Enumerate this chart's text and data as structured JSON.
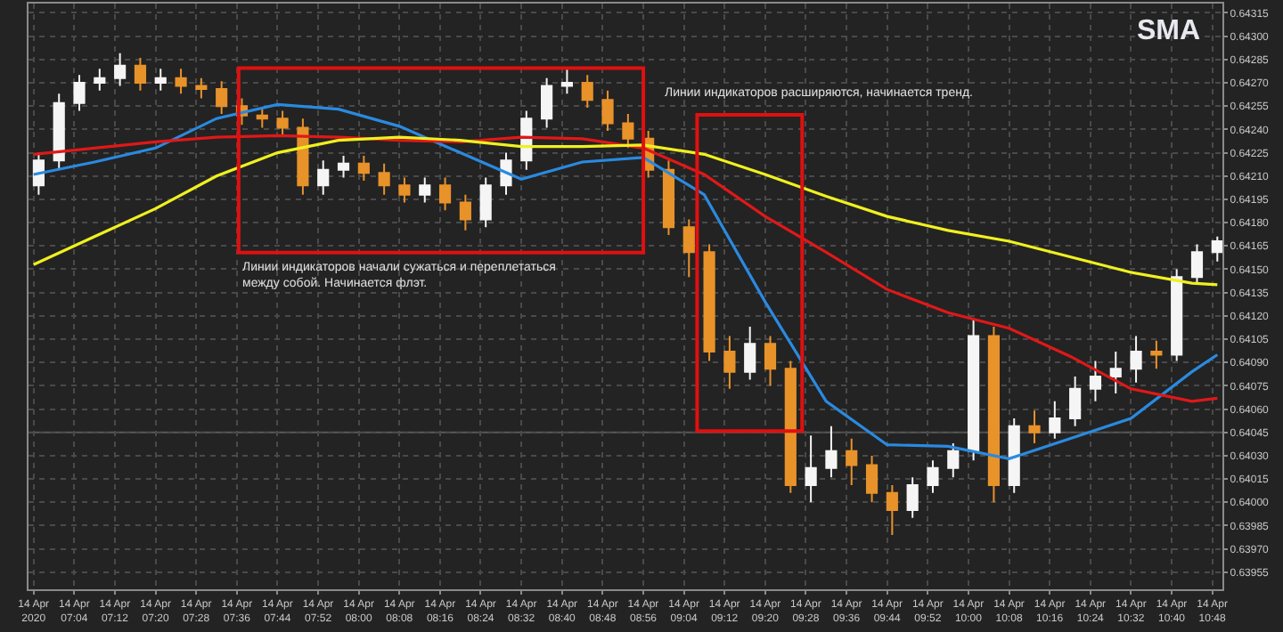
{
  "chart_data": {
    "type": "candlestick",
    "title": "SMA",
    "x": [
      "2020-04-14T06:57",
      "2020-04-14T07:01",
      "2020-04-14T07:05",
      "2020-04-14T07:09",
      "2020-04-14T07:13",
      "2020-04-14T07:17",
      "2020-04-14T07:21",
      "2020-04-14T07:25",
      "2020-04-14T07:29",
      "2020-04-14T07:33",
      "2020-04-14T07:37",
      "2020-04-14T07:41",
      "2020-04-14T07:45",
      "2020-04-14T07:49",
      "2020-04-14T07:53",
      "2020-04-14T07:57",
      "2020-04-14T08:01",
      "2020-04-14T08:05",
      "2020-04-14T08:09",
      "2020-04-14T08:13",
      "2020-04-14T08:17",
      "2020-04-14T08:21",
      "2020-04-14T08:25",
      "2020-04-14T08:29",
      "2020-04-14T08:33",
      "2020-04-14T08:37",
      "2020-04-14T08:41",
      "2020-04-14T08:45",
      "2020-04-14T08:49",
      "2020-04-14T08:53",
      "2020-04-14T08:57",
      "2020-04-14T09:01",
      "2020-04-14T09:05",
      "2020-04-14T09:09",
      "2020-04-14T09:13",
      "2020-04-14T09:17",
      "2020-04-14T09:21",
      "2020-04-14T09:25",
      "2020-04-14T09:29",
      "2020-04-14T09:33",
      "2020-04-14T09:37",
      "2020-04-14T09:41",
      "2020-04-14T09:45",
      "2020-04-14T09:49",
      "2020-04-14T09:53",
      "2020-04-14T09:57",
      "2020-04-14T10:01",
      "2020-04-14T10:05",
      "2020-04-14T10:09",
      "2020-04-14T10:13",
      "2020-04-14T10:17",
      "2020-04-14T10:21",
      "2020-04-14T10:25",
      "2020-04-14T10:29",
      "2020-04-14T10:33",
      "2020-04-14T10:37",
      "2020-04-14T10:41",
      "2020-04-14T10:45",
      "2020-04-14T10:49"
    ],
    "ohlc": [
      [
        0.64204,
        0.64225,
        0.64198,
        0.6422
      ],
      [
        0.6422,
        0.64263,
        0.64214,
        0.64257
      ],
      [
        0.64257,
        0.64275,
        0.64252,
        0.6427
      ],
      [
        0.6427,
        0.64279,
        0.64265,
        0.64273
      ],
      [
        0.64273,
        0.64289,
        0.64268,
        0.64281
      ],
      [
        0.64281,
        0.64286,
        0.64265,
        0.6427
      ],
      [
        0.6427,
        0.64279,
        0.64265,
        0.64273
      ],
      [
        0.64273,
        0.64279,
        0.64263,
        0.64268
      ],
      [
        0.64268,
        0.64273,
        0.6426,
        0.64266
      ],
      [
        0.64266,
        0.64271,
        0.6425,
        0.64255
      ],
      [
        0.64255,
        0.6426,
        0.64243,
        0.64249
      ],
      [
        0.64249,
        0.64254,
        0.64241,
        0.64247
      ],
      [
        0.64247,
        0.64252,
        0.64236,
        0.64241
      ],
      [
        0.64241,
        0.64247,
        0.64198,
        0.64204
      ],
      [
        0.64204,
        0.6422,
        0.64198,
        0.64214
      ],
      [
        0.64214,
        0.64223,
        0.64209,
        0.64218
      ],
      [
        0.64218,
        0.64223,
        0.64207,
        0.64212
      ],
      [
        0.64212,
        0.64218,
        0.64198,
        0.64204
      ],
      [
        0.64204,
        0.64209,
        0.64193,
        0.64198
      ],
      [
        0.64198,
        0.64209,
        0.64193,
        0.64204
      ],
      [
        0.64204,
        0.64209,
        0.64188,
        0.64193
      ],
      [
        0.64193,
        0.64198,
        0.64175,
        0.64182
      ],
      [
        0.64182,
        0.64209,
        0.64177,
        0.64204
      ],
      [
        0.64204,
        0.64225,
        0.64198,
        0.6422
      ],
      [
        0.6422,
        0.64252,
        0.64214,
        0.64247
      ],
      [
        0.64247,
        0.64273,
        0.64241,
        0.64268
      ],
      [
        0.64268,
        0.64279,
        0.64263,
        0.6427
      ],
      [
        0.6427,
        0.64275,
        0.64254,
        0.64259
      ],
      [
        0.64259,
        0.64265,
        0.64239,
        0.64244
      ],
      [
        0.64244,
        0.6425,
        0.64228,
        0.64234
      ],
      [
        0.64234,
        0.64239,
        0.64209,
        0.64214
      ],
      [
        0.64214,
        0.6422,
        0.64172,
        0.64177
      ],
      [
        0.64177,
        0.64182,
        0.64145,
        0.64161
      ],
      [
        0.64161,
        0.64166,
        0.64091,
        0.64097
      ],
      [
        0.64097,
        0.64107,
        0.64073,
        0.64084
      ],
      [
        0.64084,
        0.64113,
        0.64079,
        0.64102
      ],
      [
        0.64102,
        0.64107,
        0.64075,
        0.64086
      ],
      [
        0.64086,
        0.64091,
        0.64006,
        0.64011
      ],
      [
        0.64011,
        0.64043,
        0.64,
        0.64022
      ],
      [
        0.64022,
        0.64049,
        0.64016,
        0.64033
      ],
      [
        0.64033,
        0.64041,
        0.64011,
        0.64024
      ],
      [
        0.64024,
        0.6403,
        0.64,
        0.64006
      ],
      [
        0.64006,
        0.64011,
        0.63979,
        0.63995
      ],
      [
        0.63995,
        0.64016,
        0.6399,
        0.64011
      ],
      [
        0.64011,
        0.64027,
        0.64006,
        0.64022
      ],
      [
        0.64022,
        0.64038,
        0.64016,
        0.64033
      ],
      [
        0.64033,
        0.64118,
        0.64027,
        0.64107
      ],
      [
        0.64107,
        0.64113,
        0.64,
        0.64011
      ],
      [
        0.64011,
        0.64054,
        0.64006,
        0.64049
      ],
      [
        0.64049,
        0.64059,
        0.64038,
        0.64045
      ],
      [
        0.64045,
        0.64065,
        0.64041,
        0.64054
      ],
      [
        0.64054,
        0.64081,
        0.64049,
        0.64073
      ],
      [
        0.64073,
        0.64091,
        0.64065,
        0.64081
      ],
      [
        0.64081,
        0.64097,
        0.6407,
        0.64086
      ],
      [
        0.64086,
        0.64107,
        0.64077,
        0.64097
      ],
      [
        0.64097,
        0.64104,
        0.64086,
        0.64095
      ],
      [
        0.64095,
        0.6415,
        0.64091,
        0.64145
      ],
      [
        0.64145,
        0.64166,
        0.6414,
        0.64161
      ],
      [
        0.64161,
        0.64171,
        0.64155,
        0.64168
      ]
    ],
    "colors": [
      "#f5f5f5",
      "#f5f5f5",
      "#f5f5f5",
      "#f5f5f5",
      "#f5f5f5",
      "#e8922a",
      "#f5f5f5",
      "#e8922a",
      "#e8922a",
      "#e8922a",
      "#e8922a",
      "#e8922a",
      "#e8922a",
      "#e8922a",
      "#f5f5f5",
      "#f5f5f5",
      "#e8922a",
      "#e8922a",
      "#e8922a",
      "#f5f5f5",
      "#e8922a",
      "#e8922a",
      "#f5f5f5",
      "#f5f5f5",
      "#f5f5f5",
      "#f5f5f5",
      "#f5f5f5",
      "#e8922a",
      "#e8922a",
      "#e8922a",
      "#e8922a",
      "#e8922a",
      "#e8922a",
      "#e8922a",
      "#e8922a",
      "#f5f5f5",
      "#e8922a",
      "#e8922a",
      "#f5f5f5",
      "#f5f5f5",
      "#e8922a",
      "#e8922a",
      "#e8922a",
      "#f5f5f5",
      "#f5f5f5",
      "#f5f5f5",
      "#f5f5f5",
      "#e8922a",
      "#f5f5f5",
      "#e8922a",
      "#f5f5f5",
      "#f5f5f5",
      "#f5f5f5",
      "#f5f5f5",
      "#f5f5f5",
      "#e8922a",
      "#f5f5f5",
      "#f5f5f5",
      "#f5f5f5"
    ],
    "series": [
      {
        "type": "line",
        "color": "#2a8ae0",
        "x": [
          "2020-04-14T06:56",
          "2020-04-14T07:08",
          "2020-04-14T07:20",
          "2020-04-14T07:32",
          "2020-04-14T07:44",
          "2020-04-14T07:56",
          "2020-04-14T08:08",
          "2020-04-14T08:20",
          "2020-04-14T08:32",
          "2020-04-14T08:44",
          "2020-04-14T08:56",
          "2020-04-14T09:08",
          "2020-04-14T09:20",
          "2020-04-14T09:32",
          "2020-04-14T09:44",
          "2020-04-14T09:56",
          "2020-04-14T10:08",
          "2020-04-14T10:20",
          "2020-04-14T10:32",
          "2020-04-14T10:44",
          "2020-04-14T10:49"
        ],
        "values": [
          0.64211,
          0.64219,
          0.64228,
          0.64247,
          0.64256,
          0.64253,
          0.64242,
          0.64225,
          0.64208,
          0.64219,
          0.64222,
          0.64198,
          0.64129,
          0.64065,
          0.64037,
          0.64036,
          0.64028,
          0.64041,
          0.64054,
          0.64084,
          0.64095
        ]
      },
      {
        "type": "line",
        "color": "#e01818",
        "x": [
          "2020-04-14T06:56",
          "2020-04-14T07:08",
          "2020-04-14T07:20",
          "2020-04-14T07:32",
          "2020-04-14T07:44",
          "2020-04-14T07:56",
          "2020-04-14T08:08",
          "2020-04-14T08:20",
          "2020-04-14T08:32",
          "2020-04-14T08:44",
          "2020-04-14T08:56",
          "2020-04-14T09:08",
          "2020-04-14T09:20",
          "2020-04-14T09:32",
          "2020-04-14T09:44",
          "2020-04-14T09:56",
          "2020-04-14T10:08",
          "2020-04-14T10:20",
          "2020-04-14T10:32",
          "2020-04-14T10:44",
          "2020-04-14T10:49"
        ],
        "values": [
          0.64224,
          0.64228,
          0.64232,
          0.64235,
          0.64236,
          0.64235,
          0.64233,
          0.64232,
          0.64235,
          0.64234,
          0.64228,
          0.64211,
          0.64184,
          0.64161,
          0.64137,
          0.64122,
          0.64112,
          0.64094,
          0.64073,
          0.64065,
          0.64067
        ]
      },
      {
        "type": "line",
        "color": "#f0f020",
        "x": [
          "2020-04-14T06:56",
          "2020-04-14T07:08",
          "2020-04-14T07:20",
          "2020-04-14T07:32",
          "2020-04-14T07:44",
          "2020-04-14T07:56",
          "2020-04-14T08:08",
          "2020-04-14T08:20",
          "2020-04-14T08:32",
          "2020-04-14T08:44",
          "2020-04-14T08:56",
          "2020-04-14T09:08",
          "2020-04-14T09:20",
          "2020-04-14T09:32",
          "2020-04-14T09:44",
          "2020-04-14T09:56",
          "2020-04-14T10:08",
          "2020-04-14T10:20",
          "2020-04-14T10:32",
          "2020-04-14T10:44",
          "2020-04-14T10:49"
        ],
        "values": [
          0.64153,
          0.64171,
          0.64189,
          0.6421,
          0.64225,
          0.64233,
          0.64235,
          0.64233,
          0.64229,
          0.64229,
          0.6423,
          0.64224,
          0.64211,
          0.64197,
          0.64184,
          0.64175,
          0.64168,
          0.64158,
          0.64148,
          0.64141,
          0.6414
        ]
      }
    ],
    "ylim": [
      0.63944,
      0.64321
    ],
    "yticks": [
      0.64315,
      {
        "value": 0.643,
        "label": "0.64300"
      },
      0.64285,
      {
        "value": 0.6427,
        "label": "0.64270"
      },
      0.64255,
      {
        "value": 0.6424,
        "label": "0.64240"
      },
      0.64225,
      {
        "value": 0.6421,
        "label": "0.64210"
      },
      0.64195,
      {
        "value": 0.6418,
        "label": "0.64180"
      },
      0.64165,
      {
        "value": 0.6415,
        "label": "0.64150"
      },
      0.64135,
      {
        "value": 0.6412,
        "label": "0.64120"
      },
      0.64105,
      {
        "value": 0.6409,
        "label": "0.64090"
      },
      0.64075,
      {
        "value": 0.6406,
        "label": "0.64060"
      },
      0.64045,
      {
        "value": 0.6403,
        "label": "0.64030"
      },
      0.64015,
      {
        "value": 0.64,
        "label": "0.64000"
      },
      0.63985,
      {
        "value": 0.6397,
        "label": "0.63970"
      },
      0.63955
    ],
    "xlim": [
      "2020-04-14T06:55",
      "2020-04-14T10:50"
    ],
    "xticks": [
      {
        "value": "2020-04-14T06:56",
        "label": "14 Apr 2020"
      },
      {
        "value": "2020-04-14T07:04",
        "label": "14 Apr 07:04"
      },
      {
        "value": "2020-04-14T07:12",
        "label": "14 Apr 07:12"
      },
      {
        "value": "2020-04-14T07:20",
        "label": "14 Apr 07:20"
      },
      {
        "value": "2020-04-14T07:28",
        "label": "14 Apr 07:28"
      },
      {
        "value": "2020-04-14T07:36",
        "label": "14 Apr 07:36"
      },
      {
        "value": "2020-04-14T07:44",
        "label": "14 Apr 07:44"
      },
      {
        "value": "2020-04-14T07:52",
        "label": "14 Apr 07:52"
      },
      {
        "value": "2020-04-14T08:00",
        "label": "14 Apr 08:00"
      },
      {
        "value": "2020-04-14T08:08",
        "label": "14 Apr 08:08"
      },
      {
        "value": "2020-04-14T08:16",
        "label": "14 Apr 08:16"
      },
      {
        "value": "2020-04-14T08:24",
        "label": "14 Apr 08:24"
      },
      {
        "value": "2020-04-14T08:32",
        "label": "14 Apr 08:32"
      },
      {
        "value": "2020-04-14T08:40",
        "label": "14 Apr 08:40"
      },
      {
        "value": "2020-04-14T08:48",
        "label": "14 Apr 08:48"
      },
      {
        "value": "2020-04-14T08:56",
        "label": "14 Apr 08:56"
      },
      {
        "value": "2020-04-14T09:04",
        "label": "14 Apr 09:04"
      },
      {
        "value": "2020-04-14T09:12",
        "label": "14 Apr 09:12"
      },
      {
        "value": "2020-04-14T09:20",
        "label": "14 Apr 09:20"
      },
      {
        "value": "2020-04-14T09:28",
        "label": "14 Apr 09:28"
      },
      {
        "value": "2020-04-14T09:36",
        "label": "14 Apr 09:36"
      },
      {
        "value": "2020-04-14T09:44",
        "label": "14 Apr 09:44"
      },
      {
        "value": "2020-04-14T09:52",
        "label": "14 Apr 09:52"
      },
      {
        "value": "2020-04-14T10:00",
        "label": "14 Apr 10:00"
      },
      {
        "value": "2020-04-14T10:08",
        "label": "14 Apr 10:08"
      },
      {
        "value": "2020-04-14T10:16",
        "label": "14 Apr 10:16"
      },
      {
        "value": "2020-04-14T10:24",
        "label": "14 Apr 10:24"
      },
      {
        "value": "2020-04-14T10:32",
        "label": "14 Apr 10:32"
      },
      {
        "value": "2020-04-14T10:40",
        "label": "14 Apr 10:40"
      },
      {
        "value": "2020-04-14T10:48",
        "label": "14 Apr 10:48"
      }
    ],
    "grid": true,
    "ref_lines": [
      {
        "axis": "y",
        "value": 0.64045,
        "color": "#5a5a5a"
      }
    ],
    "annotations": [
      "Линии индикаторов начали сужаться и переплетаться\nмежду собой. Начинается флэт.",
      "Линии индикаторов расширяются, начинается тренд."
    ]
  }
}
